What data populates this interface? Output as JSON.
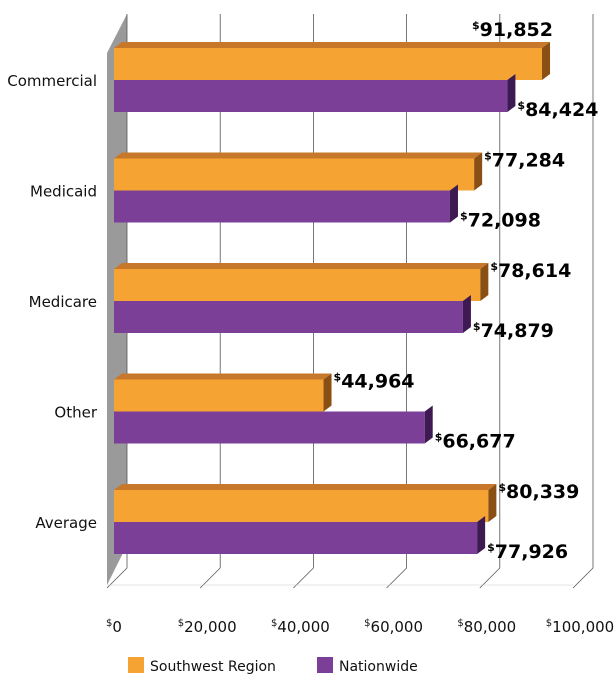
{
  "chart_data": {
    "type": "bar",
    "orientation": "horizontal",
    "categories": [
      "Commercial",
      "Medicaid",
      "Medicare",
      "Other",
      "Average"
    ],
    "series": [
      {
        "name": "Southwest Region",
        "values": [
          91852,
          77284,
          78614,
          44964,
          80339
        ],
        "labels": [
          "91,852",
          "77,284",
          "78,614",
          "44,964",
          "80,339"
        ]
      },
      {
        "name": "Nationwide",
        "values": [
          84424,
          72098,
          74879,
          66677,
          77926
        ],
        "labels": [
          "84,424",
          "72,098",
          "74,879",
          "66,677",
          "77,926"
        ]
      }
    ],
    "xlim": [
      0,
      100000
    ],
    "x_ticks": [
      0,
      20000,
      40000,
      60000,
      80000,
      100000
    ],
    "x_tick_labels": [
      "0",
      "20,000",
      "40,000",
      "60,000",
      "80,000",
      "100,000"
    ],
    "currency_symbol": "$",
    "grid": true,
    "legend_position": "bottom",
    "title": "",
    "xlabel": "",
    "ylabel": ""
  },
  "colors": {
    "Southwest Region": "#f5a433",
    "Nationwide": "#7b3f98",
    "Southwest Region_top": "#c7782a",
    "Nationwide_side": "#3d1a52",
    "Southwest Region_side": "#8a4f12",
    "wall": "#9a9a9a",
    "grid": "#555555"
  }
}
